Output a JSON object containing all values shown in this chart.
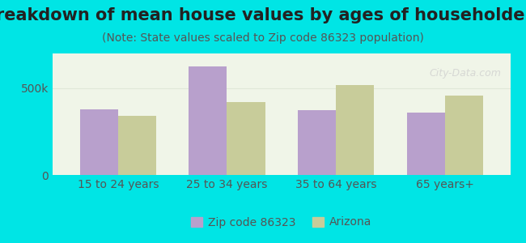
{
  "title": "Breakdown of mean house values by ages of householders",
  "subtitle": "(Note: State values scaled to Zip code 86323 population)",
  "categories": [
    "15 to 24 years",
    "25 to 34 years",
    "35 to 64 years",
    "65 years+"
  ],
  "zip_values": [
    380000,
    625000,
    375000,
    360000
  ],
  "az_values": [
    340000,
    420000,
    520000,
    455000
  ],
  "zip_color": "#b8a0cc",
  "az_color": "#c8cc9a",
  "background_outer": "#00e5e5",
  "background_plot": "#f0f5e8",
  "yticks": [
    0,
    500000
  ],
  "ytick_labels": [
    "0",
    "500k"
  ],
  "ylim": [
    0,
    700000
  ],
  "legend_zip_label": "Zip code 86323",
  "legend_az_label": "Arizona",
  "bar_width": 0.35,
  "title_fontsize": 15,
  "subtitle_fontsize": 10,
  "tick_fontsize": 10,
  "legend_fontsize": 10
}
